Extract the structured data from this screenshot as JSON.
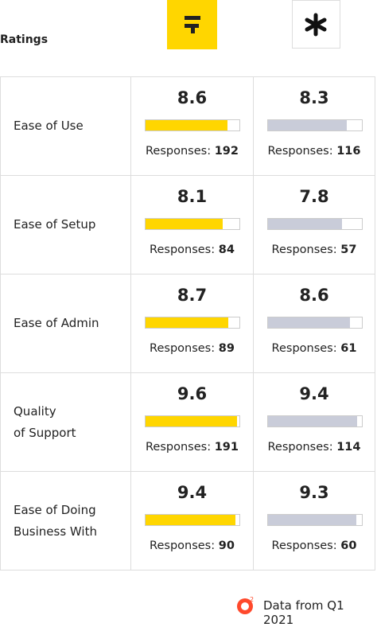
{
  "header": {
    "title": "Ratings"
  },
  "chart_data": {
    "type": "bar",
    "categories": [
      "Ease of Use",
      "Ease of Setup",
      "Ease of Admin",
      "Quality\nof Support",
      "Ease of Doing\nBusiness With"
    ],
    "xlim": [
      0,
      10
    ],
    "response_label": "Responses:",
    "series": [
      {
        "color": "#ffd600",
        "values": [
          8.6,
          8.1,
          8.7,
          9.6,
          9.4
        ],
        "responses": [
          192,
          84,
          89,
          191,
          90
        ]
      },
      {
        "color": "#c9ccd9",
        "values": [
          8.3,
          7.8,
          8.6,
          9.4,
          9.3
        ],
        "responses": [
          116,
          57,
          61,
          114,
          60
        ]
      }
    ]
  },
  "footer": {
    "source": "Data from Q1 2021"
  }
}
